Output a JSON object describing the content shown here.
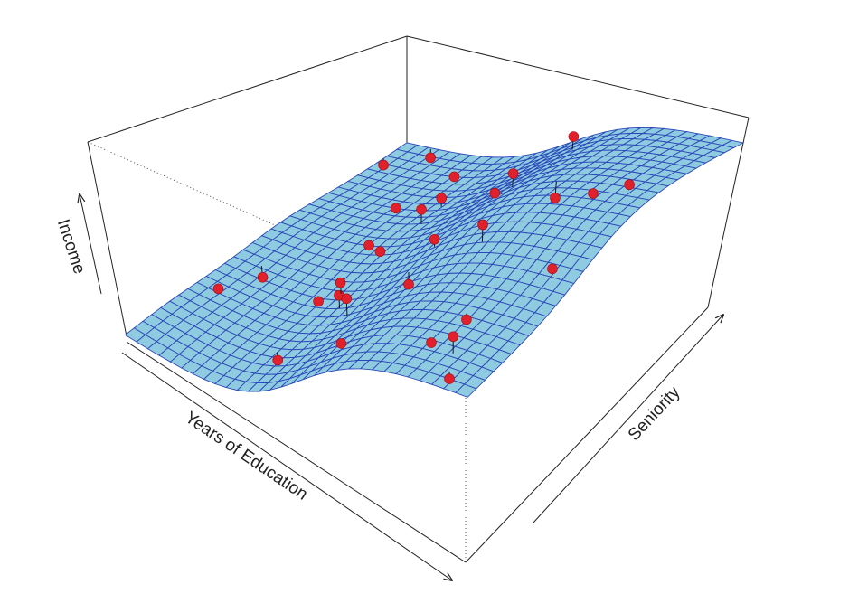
{
  "chart_data": {
    "type": "surface",
    "xlabel": "Years of Education",
    "ylabel": "Seniority",
    "zlabel": "Income"
  }
}
